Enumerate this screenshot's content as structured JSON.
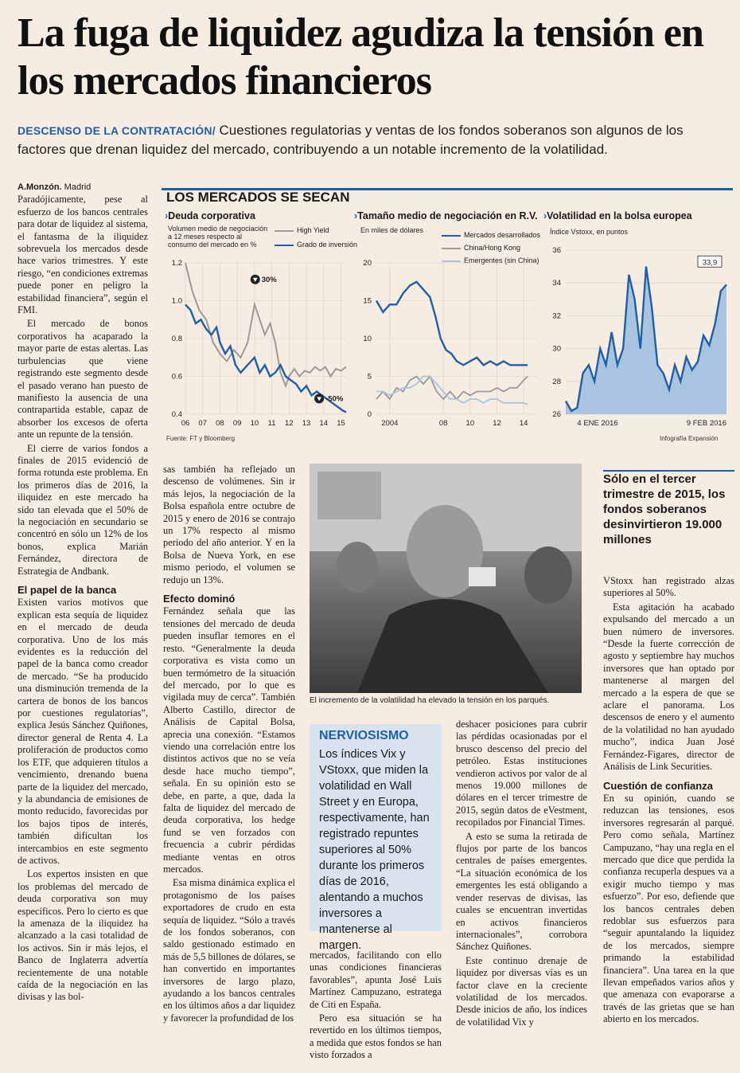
{
  "headline": "La fuga de liquidez agudiza la tensión en los mercados financieros",
  "subheadline": {
    "kicker": "DESCENSO DE LA CONTRATACIÓN/",
    "text": "Cuestiones regulatorias y ventas de los fondos soberanos son algunos de los factores que drenan liquidez del mercado, contribuyendo a un notable incremento de la volatilidad."
  },
  "byline": {
    "author": "A.Monzón.",
    "place": "Madrid"
  },
  "col1": {
    "paragraphs": [
      "Paradójicamente, pese al esfuerzo de los bancos centrales para dotar de liquidez al sistema, el fantasma de la iliquidez sobrevuela los mercados desde hace varios trimestres. Y este riesgo, “en condiciones extremas puede poner en peligro la estabilidad financiera”, según el FMI.",
      "El mercado de bonos corporativos ha acaparado la mayor parte de estas alertas. Las turbulencias que viene registrando este segmento desde el pasado verano han puesto de manifiesto la ausencia de una contrapartida estable, capaz de absorber los excesos de oferta ante un repunte de la tensión.",
      "El cierre de varios fondos a finales de 2015 evidenció de forma rotunda este problema. En los primeros días de 2016, la iliquidez en este mercado ha sido tan elevada que el 50% de la negociación en secundario se concentró en sólo un 12% de los bonos, explica Marián Fernández, directora de Estrategia de Andbank."
    ],
    "heading": "El papel de la banca",
    "paragraphs2": [
      "Existen varios motivos que explican esta sequía de liquidez en el mercado de deuda corporativa. Uno de los más evidentes es la reducción del papel de la banca como creador de mercado. “Se ha producido una disminución tremenda de la cartera de bonos de los bancos por cuestiones regulatorias”, explica Jesús Sánchez Quiñones, director general de Renta 4. La proliferación de productos como los ETF, que adquieren títulos a vencimiento, drenando buena parte de la liquidez del mercado, y la abundancia de emisiones de monto reducido, favorecidas por los bajos tipos de interés, también dificultan los intercambios en este segmento de activos.",
      "Los expertos insisten en que los problemas del mercado de deuda corporativa son muy específicos. Pero lo cierto es que la amenaza de la iliquidez ha alcanzado a la casi totalidad de los activos. Sin ir más lejos, el Banco de Inglaterra advertía recientemente de una notable caída de la negociación en las divisas y las bol-"
    ]
  },
  "col2": {
    "paragraphs": [
      "sas también ha reflejado un descenso de volúmenes. Sin ir más lejos, la negociación de la Bolsa española entre octubre de 2015 y enero de 2016 se contrajo un 17% respecto al mismo periodo del año anterior. Y en la Bolsa de Nueva York, en ese mismo periodo, el volumen se redujo un 13%."
    ],
    "heading": "Efecto dominó",
    "paragraphs2": [
      "Fernández señala que las tensiones del mercado de deuda pueden insuflar temores en el resto. “Generalmente la deuda corporativa es vista como un buen termómetro de la situación del mercado, por lo que es vigilada muy de cerca”. También Alberto Castillo, director de Análisis de Capital Bolsa, aprecia una conexión. “Estamos viendo una correlación entre los distintos activos que no se veía desde hace mucho tiempo”, señala. En su opinión esto se debe, en parte, a que, dada la falta de liquidez del mercado de deuda corporativa, los hedge fund se ven forzados con frecuencia a cubrir pérdidas mediante ventas en otros mercados.",
      "Esa misma dinámica explica el protagonismo de los países exportadores de crudo en esta sequía de liquidez. “Sólo a través de los fondos soberanos, con saldo gestionado estimado en más de 5,5 billones de dólares, se han convertido en importantes inversores de largo plazo, ayudando a los bancos centrales en los últimos años a dar liquidez y favorecer la profundidad de los"
    ]
  },
  "col3": {
    "paragraphs": [
      "mercados, facilitando con ello unas condiciones financieras favorables”, apunta José Luis Martínez Campuzano, estratega de Citi en España.",
      "Pero esa situación se ha revertido en los últimos tiempos, a medida que estos fondos se han visto forzados a"
    ]
  },
  "col4": {
    "paragraphs": [
      "deshacer posiciones para cubrir las pérdidas ocasionadas por el brusco descenso del precio del petróleo. Estas instituciones vendieron activos por valor de al menos 19.000 millones de dólares en el tercer trimestre de 2015, según datos de eVestment, recopilados por Financial Times.",
      "A esto se suma la retirada de flujos por parte de los bancos centrales de países emergentes. “La situación económica de los emergentes les está obligando a vender reservas de divisas, las cuales se encuentran invertidas en activos financieros internacionales”, corrobora Sánchez Quiñones.",
      "Este continuo drenaje de liquidez por diversas vías es un factor clave en la creciente volatilidad de los mercados. Desde inicios de año, los índices de volatilidad Vix y"
    ]
  },
  "col5": {
    "paragraphs": [
      "VStoxx han registrado alzas superiores al 50%.",
      "Esta agitación ha acabado expulsando del mercado a un buen número de inversores. “Desde la fuerte corrección de agosto y septiembre hay muchos inversores que han optado por mantenerse al margen del mercado a la espera de que se aclare el panorama. Los descensos de enero y el aumento de la volatilidad no han ayudado mucho”, indica Juan José Fernández-Figares, director de Análisis de Link Securities."
    ],
    "heading": "Cuestión de confianza",
    "paragraphs2": [
      "En su opinión, cuando se reduzcan las tensiones, esos inversores regresarán al parqué. Pero como señala, Martínez Campuzano, “hay una regla en el mercado que dice que perdida la confianza recuperla despues va a exigir mucho tiempo y mas esfuerzo”. Por eso, defiende que los bancos centrales deben redoblar sus esfuerzos para “seguir apuntalando la liquidez de los mercados, siempre primando la estabilidad financiera”. Una tarea en la que llevan empeñados varios años y que amenaza con evaporarse a través de las grietas que se han abierto en los mercados."
    ]
  },
  "pull_quote": "Sólo en el tercer trimestre de 2015, los fondos soberanos desinvirtieron 19.000 millones",
  "photo_caption": "El incremento de la volatilidad ha elevado la tensión en los parqués.",
  "sidebar": {
    "title": "NERVIOSISMO",
    "text": "Los índices Vix y VStoxx, que miden la volatilidad en Wall Street y en Europa, respectivamente, han registrado repuntes superiores al 50% durante los primeros días de 2016, alentando a muchos inversores a mantenerse al margen."
  },
  "chart_title": "LOS MERCADOS SE SECAN",
  "chart_source": "Fuente: FT y Bloomberg",
  "chart_credit": "Infografía Expansión",
  "colors": {
    "accent": "#1f5fa8",
    "gray": "#9a9a9a",
    "lightblue": "#a9c4e0",
    "area": "#a9c4e0"
  },
  "chart_data": [
    {
      "type": "line",
      "title": "Deuda corporativa",
      "subtitle": "Volumen medio de negociación a 12 meses respecto al consumo del mercado en %",
      "x": [
        2006,
        2007,
        2008,
        2009,
        2010,
        2011,
        2012,
        2013,
        2014,
        2015
      ],
      "xticks": [
        "06",
        "07",
        "08",
        "09",
        "10",
        "11",
        "12",
        "13",
        "14",
        "15"
      ],
      "yticks": [
        "0.4",
        "0.6",
        "0.8",
        "1.0",
        "1.2"
      ],
      "ylim": [
        0.4,
        1.2
      ],
      "series": [
        {
          "name": "High Yield",
          "color": "#9a9a9a",
          "points": [
            [
              2006,
              1.2
            ],
            [
              2006.4,
              1.05
            ],
            [
              2006.8,
              0.95
            ],
            [
              2007.2,
              0.9
            ],
            [
              2007.6,
              0.78
            ],
            [
              2008,
              0.72
            ],
            [
              2008.4,
              0.68
            ],
            [
              2008.8,
              0.74
            ],
            [
              2009.2,
              0.7
            ],
            [
              2009.6,
              0.78
            ],
            [
              2010,
              0.98
            ],
            [
              2010.3,
              0.9
            ],
            [
              2010.6,
              0.82
            ],
            [
              2010.9,
              0.88
            ],
            [
              2011.2,
              0.78
            ],
            [
              2011.5,
              0.62
            ],
            [
              2011.8,
              0.55
            ],
            [
              2012,
              0.6
            ],
            [
              2012.3,
              0.64
            ],
            [
              2012.6,
              0.6
            ],
            [
              2012.9,
              0.63
            ],
            [
              2013.2,
              0.62
            ],
            [
              2013.5,
              0.65
            ],
            [
              2013.8,
              0.63
            ],
            [
              2014.1,
              0.65
            ],
            [
              2014.4,
              0.6
            ],
            [
              2014.7,
              0.64
            ],
            [
              2015,
              0.63
            ],
            [
              2015.3,
              0.65
            ]
          ]
        },
        {
          "name": "Grado de inversión",
          "color": "#1f5fa8",
          "points": [
            [
              2006,
              0.98
            ],
            [
              2006.3,
              0.95
            ],
            [
              2006.6,
              0.88
            ],
            [
              2006.9,
              0.9
            ],
            [
              2007.2,
              0.85
            ],
            [
              2007.5,
              0.82
            ],
            [
              2007.8,
              0.86
            ],
            [
              2008,
              0.78
            ],
            [
              2008.3,
              0.72
            ],
            [
              2008.6,
              0.76
            ],
            [
              2008.9,
              0.66
            ],
            [
              2009.2,
              0.62
            ],
            [
              2009.5,
              0.65
            ],
            [
              2009.8,
              0.68
            ],
            [
              2010,
              0.7
            ],
            [
              2010.3,
              0.62
            ],
            [
              2010.6,
              0.66
            ],
            [
              2010.9,
              0.6
            ],
            [
              2011.2,
              0.62
            ],
            [
              2011.5,
              0.66
            ],
            [
              2011.8,
              0.6
            ],
            [
              2012.1,
              0.58
            ],
            [
              2012.4,
              0.56
            ],
            [
              2012.7,
              0.52
            ],
            [
              2013,
              0.55
            ],
            [
              2013.3,
              0.5
            ],
            [
              2013.6,
              0.52
            ],
            [
              2013.9,
              0.5
            ],
            [
              2014.2,
              0.48
            ],
            [
              2014.5,
              0.46
            ],
            [
              2014.8,
              0.44
            ],
            [
              2015.1,
              0.42
            ],
            [
              2015.3,
              0.41
            ]
          ]
        }
      ],
      "annotations": [
        {
          "text": "30%",
          "x": 2010.5,
          "y": 1.1
        },
        {
          "text": "-50%",
          "x": 2014.2,
          "y": 0.47
        }
      ]
    },
    {
      "type": "line",
      "title": "Tamaño medio de negociación en R.V.",
      "subtitle": "En miles de dólares",
      "xlim": [
        2003,
        2015
      ],
      "xticks_values": [
        2004,
        2008,
        2010,
        2012,
        2014
      ],
      "xticks": [
        "2004",
        "08",
        "10",
        "12",
        "14"
      ],
      "yticks": [
        "0",
        "5",
        "10",
        "15",
        "20"
      ],
      "ylim": [
        0,
        20
      ],
      "series": [
        {
          "name": "Mercados desarrollados",
          "color": "#1f5fa8",
          "points": [
            [
              2003,
              15
            ],
            [
              2003.5,
              13.5
            ],
            [
              2004,
              14.5
            ],
            [
              2004.5,
              14.5
            ],
            [
              2005,
              16
            ],
            [
              2005.5,
              17
            ],
            [
              2006,
              17.5
            ],
            [
              2006.5,
              16.5
            ],
            [
              2007,
              15.5
            ],
            [
              2007.4,
              13
            ],
            [
              2007.8,
              10
            ],
            [
              2008.2,
              8.5
            ],
            [
              2008.6,
              8
            ],
            [
              2009,
              7
            ],
            [
              2009.5,
              6.5
            ],
            [
              2010,
              7
            ],
            [
              2010.5,
              7.5
            ],
            [
              2011,
              6.5
            ],
            [
              2011.5,
              7
            ],
            [
              2012,
              6.5
            ],
            [
              2012.5,
              7
            ],
            [
              2013,
              6.5
            ],
            [
              2013.5,
              6.5
            ],
            [
              2014,
              6.5
            ],
            [
              2014.3,
              6.5
            ]
          ]
        },
        {
          "name": "China/Hong Kong",
          "color": "#9a9a9a",
          "points": [
            [
              2003,
              2
            ],
            [
              2003.5,
              3
            ],
            [
              2004,
              2
            ],
            [
              2004.5,
              3.5
            ],
            [
              2005,
              3
            ],
            [
              2005.5,
              4.5
            ],
            [
              2006,
              5
            ],
            [
              2006.5,
              4
            ],
            [
              2007,
              5
            ],
            [
              2007.5,
              3
            ],
            [
              2008,
              2
            ],
            [
              2008.5,
              3
            ],
            [
              2009,
              2
            ],
            [
              2009.5,
              3
            ],
            [
              2010,
              2.5
            ],
            [
              2010.5,
              3
            ],
            [
              2011,
              3
            ],
            [
              2011.5,
              3
            ],
            [
              2012,
              3.5
            ],
            [
              2012.5,
              3
            ],
            [
              2013,
              3.5
            ],
            [
              2013.5,
              3.5
            ],
            [
              2014,
              4.5
            ],
            [
              2014.3,
              5
            ]
          ]
        },
        {
          "name": "Emergentes (sin China)",
          "color": "#a9c4e0",
          "points": [
            [
              2003,
              3
            ],
            [
              2003.5,
              3
            ],
            [
              2004,
              2.5
            ],
            [
              2004.5,
              3
            ],
            [
              2005,
              3.5
            ],
            [
              2005.5,
              3.5
            ],
            [
              2006,
              4
            ],
            [
              2006.5,
              5
            ],
            [
              2007,
              5
            ],
            [
              2007.5,
              4
            ],
            [
              2008,
              3
            ],
            [
              2008.5,
              2
            ],
            [
              2009,
              2
            ],
            [
              2009.5,
              1.5
            ],
            [
              2010,
              2
            ],
            [
              2010.5,
              2
            ],
            [
              2011,
              1.5
            ],
            [
              2011.5,
              2
            ],
            [
              2012,
              2
            ],
            [
              2012.5,
              1.5
            ],
            [
              2013,
              1.5
            ],
            [
              2013.5,
              1.5
            ],
            [
              2014,
              1.5
            ],
            [
              2014.3,
              1.3
            ]
          ]
        }
      ]
    },
    {
      "type": "area",
      "title": "Volatilidad en la bolsa europea",
      "subtitle": "Índice Vstoxx, en puntos",
      "xticks": [
        "4 ENE 2016",
        "9 FEB 2016"
      ],
      "yticks": [
        "26",
        "28",
        "30",
        "32",
        "34",
        "36"
      ],
      "ylim": [
        26,
        36
      ],
      "values": [
        26.8,
        26.2,
        26.4,
        28.5,
        29,
        28,
        30,
        29,
        31,
        29,
        30,
        34.5,
        33,
        30,
        35,
        32.5,
        29,
        28.5,
        27.5,
        29,
        28,
        29.5,
        28.7,
        29.2,
        30.8,
        30.2,
        31.5,
        33.5,
        33.9
      ],
      "color": "#1f5fa8",
      "fill": "#a9c4e0",
      "label_last": "33,9"
    }
  ]
}
